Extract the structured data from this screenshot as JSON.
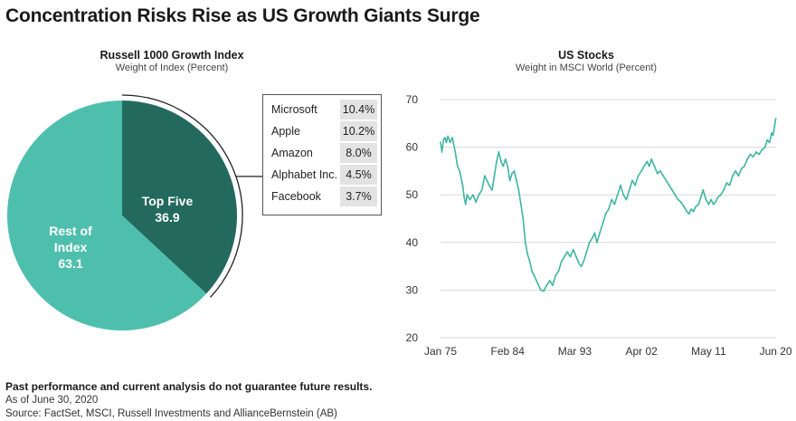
{
  "page": {
    "title": "Concentration Risks Rise as US Growth Giants Surge"
  },
  "colors": {
    "top_five": "#23695e",
    "rest": "#4fbfad",
    "line": "#3fb6a3",
    "grid": "#d9d9d9"
  },
  "left_chart": {
    "title": "Russell 1000 Growth Index",
    "subtitle": "Weight of Index (Percent)"
  },
  "right_chart": {
    "title": "US Stocks",
    "subtitle": "Weight in MSCI World (Percent)"
  },
  "footer": {
    "disclaimer": "Past performance and current analysis do not guarantee future results.",
    "asof": "As of June 30, 2020",
    "source": "Source: FactSet, MSCI, Russell Investments and AllianceBernstein (AB)"
  },
  "chart_data": [
    {
      "type": "pie",
      "title": "Russell 1000 Growth Index",
      "subtitle": "Weight of Index (Percent)",
      "slices": [
        {
          "label_lines": [
            "Top Five"
          ],
          "value": 36.9,
          "value_label": "36.9"
        },
        {
          "label_lines": [
            "Rest of",
            "Index"
          ],
          "value": 63.1,
          "value_label": "63.1"
        }
      ],
      "callout_table": [
        {
          "name": "Microsoft",
          "value": "10.4%"
        },
        {
          "name": "Apple",
          "value": "10.2%"
        },
        {
          "name": "Amazon",
          "value": "8.0%"
        },
        {
          "name": "Alphabet Inc.",
          "value": "4.5%"
        },
        {
          "name": "Facebook",
          "value": "3.7%"
        }
      ]
    },
    {
      "type": "line",
      "title": "US Stocks",
      "subtitle": "Weight in MSCI World (Percent)",
      "ylim": [
        20,
        70
      ],
      "yticks": [
        20,
        30,
        40,
        50,
        60,
        70
      ],
      "xlim": [
        1975,
        2020.5
      ],
      "xticks": [
        {
          "label": "Jan 75",
          "x": 1975.0
        },
        {
          "label": "Feb 84",
          "x": 1984.1
        },
        {
          "label": "Mar 93",
          "x": 1993.2
        },
        {
          "label": "Apr 02",
          "x": 2002.25
        },
        {
          "label": "May 11",
          "x": 2011.35
        },
        {
          "label": "Jun 20",
          "x": 2020.45
        }
      ],
      "grid": true,
      "series": [
        {
          "points": [
            [
              1975.0,
              61
            ],
            [
              1975.2,
              59
            ],
            [
              1975.4,
              61.5
            ],
            [
              1975.6,
              62
            ],
            [
              1975.8,
              61
            ],
            [
              1976.0,
              62.3
            ],
            [
              1976.3,
              61
            ],
            [
              1976.6,
              62
            ],
            [
              1977.0,
              59
            ],
            [
              1977.3,
              56
            ],
            [
              1977.6,
              55
            ],
            [
              1978.0,
              52
            ],
            [
              1978.2,
              49.5
            ],
            [
              1978.4,
              48
            ],
            [
              1978.6,
              50
            ],
            [
              1979.0,
              49
            ],
            [
              1979.4,
              50
            ],
            [
              1979.8,
              48.5
            ],
            [
              1980.2,
              50
            ],
            [
              1980.6,
              51
            ],
            [
              1981.0,
              54
            ],
            [
              1981.3,
              53
            ],
            [
              1981.6,
              52
            ],
            [
              1982.0,
              51
            ],
            [
              1982.3,
              54
            ],
            [
              1982.6,
              57
            ],
            [
              1982.9,
              59
            ],
            [
              1983.2,
              57
            ],
            [
              1983.5,
              56
            ],
            [
              1983.8,
              57.5
            ],
            [
              1984.1,
              56
            ],
            [
              1984.4,
              53
            ],
            [
              1984.7,
              54.5
            ],
            [
              1985.0,
              55
            ],
            [
              1985.3,
              53
            ],
            [
              1985.6,
              51
            ],
            [
              1985.9,
              48
            ],
            [
              1986.2,
              45
            ],
            [
              1986.5,
              40
            ],
            [
              1986.8,
              37.5
            ],
            [
              1987.1,
              36
            ],
            [
              1987.4,
              34
            ],
            [
              1987.7,
              33
            ],
            [
              1988.0,
              32
            ],
            [
              1988.3,
              31
            ],
            [
              1988.6,
              30
            ],
            [
              1989.0,
              29.8
            ],
            [
              1989.4,
              31
            ],
            [
              1989.8,
              32
            ],
            [
              1990.2,
              31
            ],
            [
              1990.6,
              33
            ],
            [
              1991.0,
              34
            ],
            [
              1991.4,
              36
            ],
            [
              1991.8,
              37
            ],
            [
              1992.2,
              38
            ],
            [
              1992.6,
              37
            ],
            [
              1993.0,
              38.5
            ],
            [
              1993.4,
              37
            ],
            [
              1993.8,
              35.5
            ],
            [
              1994.1,
              35
            ],
            [
              1994.4,
              36
            ],
            [
              1994.8,
              38
            ],
            [
              1995.2,
              40
            ],
            [
              1995.6,
              41
            ],
            [
              1995.9,
              42
            ],
            [
              1996.2,
              40
            ],
            [
              1996.6,
              42
            ],
            [
              1997.0,
              44
            ],
            [
              1997.4,
              46
            ],
            [
              1997.8,
              47
            ],
            [
              1998.2,
              49
            ],
            [
              1998.6,
              48
            ],
            [
              1999.0,
              50
            ],
            [
              1999.4,
              52
            ],
            [
              1999.8,
              50
            ],
            [
              2000.2,
              49
            ],
            [
              2000.6,
              51
            ],
            [
              2001.0,
              53
            ],
            [
              2001.4,
              52
            ],
            [
              2001.8,
              54
            ],
            [
              2002.25,
              55
            ],
            [
              2002.6,
              56
            ],
            [
              2003.0,
              57
            ],
            [
              2003.3,
              56
            ],
            [
              2003.6,
              57.5
            ],
            [
              2004.0,
              56
            ],
            [
              2004.4,
              54.5
            ],
            [
              2004.8,
              55
            ],
            [
              2005.2,
              54
            ],
            [
              2005.6,
              53
            ],
            [
              2006.0,
              52
            ],
            [
              2006.4,
              51
            ],
            [
              2006.8,
              50
            ],
            [
              2007.2,
              49
            ],
            [
              2007.6,
              48.5
            ],
            [
              2008.0,
              47.5
            ],
            [
              2008.4,
              46.5
            ],
            [
              2008.7,
              46
            ],
            [
              2009.0,
              47
            ],
            [
              2009.3,
              46.5
            ],
            [
              2009.6,
              47.5
            ],
            [
              2010.0,
              48
            ],
            [
              2010.3,
              49.5
            ],
            [
              2010.6,
              51
            ],
            [
              2011.0,
              49
            ],
            [
              2011.35,
              48
            ],
            [
              2011.7,
              49
            ],
            [
              2012.0,
              48
            ],
            [
              2012.3,
              48.5
            ],
            [
              2012.6,
              49.5
            ],
            [
              2013.0,
              50
            ],
            [
              2013.4,
              51
            ],
            [
              2013.8,
              52.5
            ],
            [
              2014.2,
              52
            ],
            [
              2014.6,
              54
            ],
            [
              2015.0,
              55
            ],
            [
              2015.4,
              54
            ],
            [
              2015.8,
              55.5
            ],
            [
              2016.2,
              56
            ],
            [
              2016.6,
              57.5
            ],
            [
              2017.0,
              58.5
            ],
            [
              2017.4,
              58
            ],
            [
              2017.8,
              59
            ],
            [
              2018.2,
              58.5
            ],
            [
              2018.6,
              59.5
            ],
            [
              2019.0,
              60
            ],
            [
              2019.3,
              61.5
            ],
            [
              2019.6,
              61
            ],
            [
              2019.9,
              63
            ],
            [
              2020.1,
              62.5
            ],
            [
              2020.3,
              64.5
            ],
            [
              2020.45,
              66
            ]
          ]
        }
      ]
    }
  ]
}
